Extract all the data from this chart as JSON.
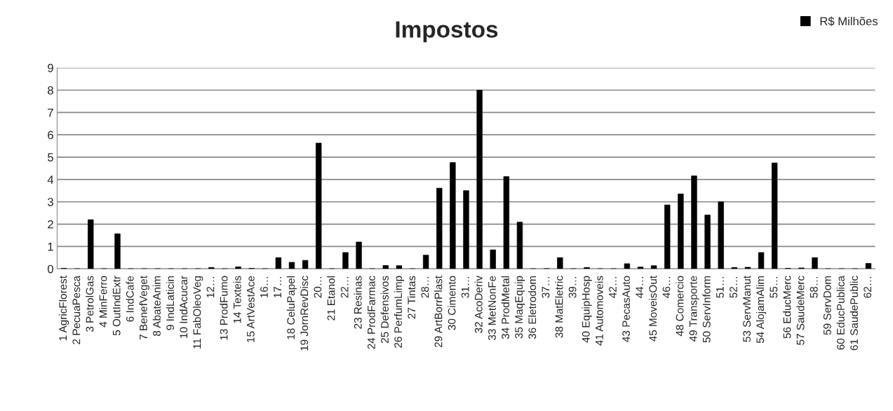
{
  "chart_data": {
    "type": "bar",
    "title": "Impostos",
    "categories": [
      "1 AgricFlorest",
      "2 PecuaPesca",
      "3 PetrolGas",
      "4 MinFerro",
      "5 OutIndExtr",
      "6 IndCafe",
      "7 BenefVeget",
      "8 AbateAnim",
      "9 IndLaticin",
      "10 IndAcucar",
      "11 FabOleoVeg",
      "12…",
      "13 ProdFumo",
      "14 Texteis",
      "15 ArtVestAce",
      "16…",
      "17…",
      "18 CeluPapel",
      "19 JornRevDisc",
      "20…",
      "21 Etanol",
      "22…",
      "23 Resinas",
      "24 ProdFarmac",
      "25 Defensivos",
      "26 PerfumLimp",
      "27 Tintas",
      "28…",
      "29 ArtBorrPlast",
      "30 Cimento",
      "31…",
      "32 AcoDeriv",
      "33 MetNonFe",
      "34 ProdMetal",
      "35 MaqEquip",
      "36 Eletrodom",
      "37…",
      "38 MatEletric",
      "39…",
      "40 EquipHosp",
      "41 Automoveis",
      "42…",
      "43 PecasAuto",
      "44…",
      "45 MoveisOut",
      "46…",
      "48 Comercio",
      "49 Transporte",
      "50 ServInform",
      "51…",
      "52…",
      "53 ServManut",
      "54 AlojamAlim",
      "55…",
      "56 EducMerc",
      "57 SaudeMerc",
      "58…",
      "59 ServDom",
      "60 EducPublica",
      "61 SaudePublic",
      "62…"
    ],
    "series": [
      {
        "name": "R$ Milhões",
        "color": "#000000",
        "values": [
          0.02,
          0,
          2.2,
          0,
          1.57,
          0,
          0,
          0,
          0,
          0,
          0,
          0.06,
          0,
          0.09,
          0.02,
          0,
          0.5,
          0.29,
          0.38,
          5.63,
          0,
          0.73,
          1.2,
          0,
          0.15,
          0.14,
          0,
          0.61,
          3.61,
          4.76,
          3.5,
          8.0,
          0.85,
          4.13,
          2.09,
          0,
          0.01,
          0.5,
          0,
          0.06,
          0,
          0,
          0.23,
          0.08,
          0.14,
          2.86,
          3.35,
          4.16,
          2.41,
          3.0,
          0.06,
          0.07,
          0.73,
          4.74,
          0.02,
          0.04,
          0.5,
          0,
          0,
          0,
          0.24
        ]
      }
    ],
    "ylim": [
      0,
      9
    ],
    "yticks": [
      0,
      1,
      2,
      3,
      4,
      5,
      6,
      7,
      8,
      9
    ],
    "grid": "y",
    "legend": "top right"
  }
}
